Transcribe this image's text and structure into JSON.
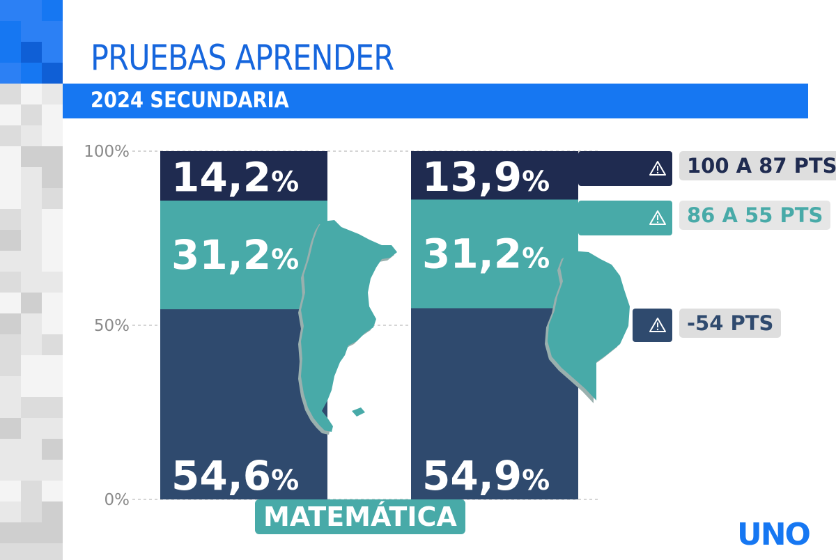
{
  "header": {
    "title": "PRUEBAS APRENDER",
    "subtitle": "2024 SECUNDARIA"
  },
  "colors": {
    "title_blue": "#1666dd",
    "banner_blue": "#1677f2",
    "level_high": "#1f2b50",
    "level_mid": "#48aaa8",
    "level_low": "#2f4a6e",
    "map_fill": "#48aaa8",
    "legend_box": "#dedede",
    "decor_light": "#e8e8e8",
    "decor_blue": "#1677f2"
  },
  "chart_data": {
    "type": "bar",
    "stacked": true,
    "subject": "MATEMÁTICA",
    "ylim": [
      0,
      100
    ],
    "yticks": [
      "0%",
      "50%",
      "100%"
    ],
    "ytick_values": [
      0,
      50,
      100
    ],
    "grid": true,
    "bars": [
      {
        "map": "argentina-map-icon",
        "segments": [
          {
            "level": "-54 PTS",
            "value": 54.6,
            "label": "54,6%",
            "color": "#2f4a6e"
          },
          {
            "level": "86 A 55 PTS",
            "value": 31.2,
            "label": "31,2%",
            "color": "#48aaa8"
          },
          {
            "level": "100 A 87 PTS",
            "value": 14.2,
            "label": "14,2%",
            "color": "#1f2b50"
          }
        ]
      },
      {
        "map": "cordoba-map-icon",
        "segments": [
          {
            "level": "-54 PTS",
            "value": 54.9,
            "label": "54,9%",
            "color": "#2f4a6e"
          },
          {
            "level": "86 A 55 PTS",
            "value": 31.2,
            "label": "31,2%",
            "color": "#48aaa8"
          },
          {
            "level": "100 A 87 PTS",
            "value": 13.9,
            "label": "13,9%",
            "color": "#1f2b50"
          }
        ]
      }
    ],
    "legend": {
      "placement": "right",
      "entries": [
        {
          "label": "100 A 87 PTS",
          "color": "#1f2b50",
          "icon": "warning-icon"
        },
        {
          "label": "86 A 55 PTS",
          "color": "#48aaa8",
          "icon": "warning-icon"
        },
        {
          "label": "-54 PTS",
          "color": "#2f4a6e",
          "icon": "warning-icon"
        }
      ]
    }
  },
  "logo": {
    "text": "UNO",
    "color": "#1677f2"
  }
}
